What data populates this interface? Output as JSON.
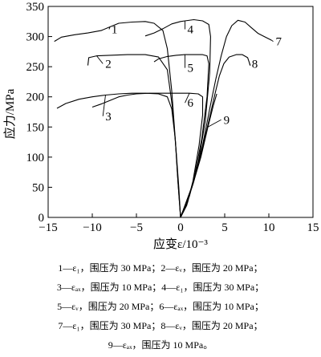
{
  "chart_data": {
    "type": "line",
    "xlabel": "应变ε/10⁻³",
    "ylabel": "应力/MPa",
    "xlim": [
      -15,
      15
    ],
    "ylim": [
      0,
      350
    ],
    "xticks": [
      "−15",
      "−10",
      "−5",
      "0",
      "5",
      "10",
      "15"
    ],
    "yticks": [
      "0",
      "50",
      "100",
      "150",
      "200",
      "250",
      "300",
      "350"
    ],
    "grid": false,
    "series": [
      {
        "name": "1",
        "label_at": [
          -8.1,
          312
        ],
        "points": [
          [
            -14.3,
            292
          ],
          [
            -13.5,
            299
          ],
          [
            -12,
            303
          ],
          [
            -10.5,
            306
          ],
          [
            -9,
            310
          ],
          [
            -8,
            316
          ],
          [
            -7,
            322
          ],
          [
            -5.5,
            324
          ],
          [
            -4,
            325
          ],
          [
            -3,
            322
          ],
          [
            -2,
            310
          ],
          [
            -1.5,
            280
          ],
          [
            -1.0,
            210
          ],
          [
            -0.6,
            130
          ],
          [
            -0.3,
            60
          ],
          [
            0,
            0
          ]
        ]
      },
      {
        "name": "2",
        "label_at": [
          -8.8,
          255
        ],
        "points": [
          [
            -10.5,
            252
          ],
          [
            -10.4,
            265
          ],
          [
            -9.5,
            268
          ],
          [
            -8,
            269
          ],
          [
            -6,
            270
          ],
          [
            -4,
            270
          ],
          [
            -2.5,
            266
          ],
          [
            -1.5,
            245
          ],
          [
            -0.9,
            180
          ],
          [
            -0.5,
            110
          ],
          [
            -0.2,
            50
          ],
          [
            0,
            0
          ]
        ]
      },
      {
        "name": "3",
        "label_at": [
          -8.8,
          168
        ],
        "points": [
          [
            -14,
            181
          ],
          [
            -13,
            189
          ],
          [
            -11.5,
            196
          ],
          [
            -10,
            200
          ],
          [
            -8.5,
            203
          ],
          [
            -7,
            205
          ],
          [
            -5.5,
            206
          ],
          [
            -4,
            206
          ],
          [
            -2.5,
            205
          ],
          [
            -1.5,
            200
          ],
          [
            -1.0,
            180
          ],
          [
            -0.6,
            130
          ],
          [
            -0.3,
            60
          ],
          [
            0,
            0
          ]
        ]
      },
      {
        "name": "4",
        "label_at": [
          0.5,
          312
        ],
        "points": [
          [
            -4,
            301
          ],
          [
            -3,
            306
          ],
          [
            -2,
            313
          ],
          [
            -1,
            321
          ],
          [
            0,
            325
          ],
          [
            0.5,
            326
          ],
          [
            1.5,
            328
          ],
          [
            2.5,
            326
          ],
          [
            3.2,
            320
          ],
          [
            3.4,
            300
          ],
          [
            3.3,
            240
          ],
          [
            2.8,
            160
          ],
          [
            2.0,
            90
          ],
          [
            1.0,
            35
          ],
          [
            0,
            0
          ]
        ]
      },
      {
        "name": "5",
        "label_at": [
          0.5,
          248
        ],
        "points": [
          [
            -3,
            258
          ],
          [
            -2.5,
            263
          ],
          [
            -1.5,
            267
          ],
          [
            -0.5,
            269
          ],
          [
            0.5,
            270
          ],
          [
            1.5,
            270
          ],
          [
            2.5,
            270
          ],
          [
            3,
            268
          ],
          [
            3.2,
            255
          ],
          [
            3.0,
            200
          ],
          [
            2.4,
            130
          ],
          [
            1.6,
            70
          ],
          [
            0.8,
            25
          ],
          [
            0,
            0
          ]
        ]
      },
      {
        "name": "6",
        "label_at": [
          0.5,
          190
        ],
        "points": [
          [
            -10,
            183
          ],
          [
            -9,
            188
          ],
          [
            -8,
            194
          ],
          [
            -7,
            200
          ],
          [
            -6,
            203
          ],
          [
            -5,
            205
          ],
          [
            -3.5,
            206
          ],
          [
            -2,
            206
          ],
          [
            -0.5,
            206
          ],
          [
            1,
            206
          ],
          [
            2,
            205
          ],
          [
            2.5,
            200
          ],
          [
            2.5,
            170
          ],
          [
            2.1,
            120
          ],
          [
            1.4,
            60
          ],
          [
            0.7,
            20
          ],
          [
            0,
            0
          ]
        ]
      },
      {
        "name": "7",
        "label_at": [
          10.5,
          292
        ],
        "points": [
          [
            0,
            0
          ],
          [
            1.5,
            60
          ],
          [
            2.5,
            120
          ],
          [
            3.3,
            180
          ],
          [
            4,
            230
          ],
          [
            4.6,
            268
          ],
          [
            5.2,
            300
          ],
          [
            5.8,
            318
          ],
          [
            6.5,
            327
          ],
          [
            7.3,
            324
          ],
          [
            8,
            315
          ],
          [
            8.8,
            305
          ],
          [
            9.6,
            299
          ],
          [
            10.3,
            294
          ]
        ]
      },
      {
        "name": "8",
        "label_at": [
          7.8,
          255
        ],
        "points": [
          [
            0,
            0
          ],
          [
            1.4,
            55
          ],
          [
            2.4,
            110
          ],
          [
            3.2,
            160
          ],
          [
            3.9,
            205
          ],
          [
            4.4,
            235
          ],
          [
            4.9,
            255
          ],
          [
            5.5,
            266
          ],
          [
            6.3,
            270
          ],
          [
            7,
            270
          ],
          [
            7.6,
            265
          ],
          [
            7.9,
            252
          ]
        ]
      },
      {
        "name": "9",
        "label_at": [
          4.6,
          162
        ],
        "points": [
          [
            0,
            0
          ],
          [
            1.3,
            50
          ],
          [
            2.3,
            100
          ],
          [
            3.1,
            150
          ],
          [
            3.7,
            185
          ],
          [
            4.1,
            205
          ]
        ]
      }
    ]
  },
  "caption": [
    "1—ε₁，围压为 30 MPa；2—εᵥ，围压为 20 MPa；",
    "3—εₐₓ，围压为 10 MPa；4—ε₁，围压为 30 MPa；",
    "5—εᵥ，围压为 20 MPa；6—εₐₓ，围压为 10 MPa；",
    "7—ε₁，围压为 30 MPa；8—εᵥ，围压为 20 MPa；",
    "9—εₐₓ，围压为 10 MPa。"
  ]
}
